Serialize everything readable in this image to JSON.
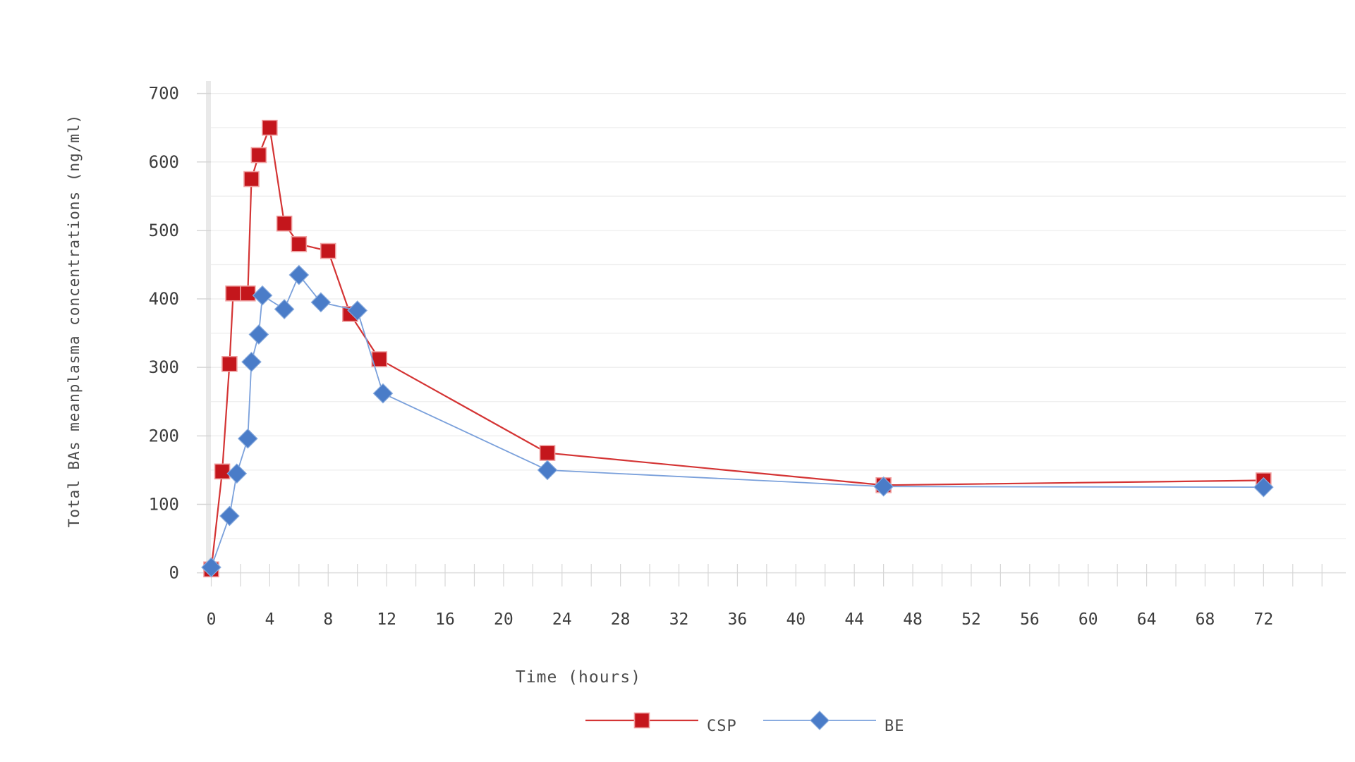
{
  "chart_data": {
    "type": "line",
    "title": "",
    "xlabel": "Time (hours)",
    "ylabel": "Total BAs meanplasma concentrations (ng/ml)",
    "xlim": [
      0,
      77.5
    ],
    "ylim": [
      0,
      730
    ],
    "x_tick_labels": [
      0,
      4,
      8,
      12,
      16,
      20,
      24,
      28,
      32,
      36,
      40,
      44,
      48,
      52,
      56,
      60,
      64,
      68,
      72
    ],
    "x_minor_tick_step_hours": 2,
    "y_tick_labels": [
      0,
      100,
      200,
      300,
      400,
      500,
      600,
      700
    ],
    "y_gridline_step": 50,
    "grid": "horizontal light gridlines every 50, minor x ticks every 2h",
    "legend_position": "bottom-center",
    "colors": {
      "csp_marker": "#c4161c",
      "csp_marker_edge": "#ef9f9f",
      "csp_line": "#d43434",
      "be_marker": "#4a7cc8",
      "be_marker_edge": "#87aadd",
      "be_line": "#7aa0db",
      "gridline": "#ededed",
      "axis_baseline": "#dcdcdc",
      "tick": "#d6d6d6",
      "y_axis_bar": "#e9e9e9",
      "tick_text": "#3d3d3d"
    },
    "series": [
      {
        "name": "CSP",
        "marker": "square",
        "points": [
          {
            "t": 0,
            "v": 5
          },
          {
            "t": 0.75,
            "v": 148
          },
          {
            "t": 1.25,
            "v": 305
          },
          {
            "t": 1.5,
            "v": 408
          },
          {
            "t": 2.5,
            "v": 408
          },
          {
            "t": 2.75,
            "v": 575
          },
          {
            "t": 3.25,
            "v": 610
          },
          {
            "t": 4,
            "v": 650
          },
          {
            "t": 5,
            "v": 510
          },
          {
            "t": 6,
            "v": 480
          },
          {
            "t": 8,
            "v": 470
          },
          {
            "t": 9.5,
            "v": 378
          },
          {
            "t": 11.5,
            "v": 312
          },
          {
            "t": 23,
            "v": 175
          },
          {
            "t": 46,
            "v": 128
          },
          {
            "t": 72,
            "v": 135
          }
        ]
      },
      {
        "name": "BE",
        "marker": "diamond",
        "points": [
          {
            "t": 0,
            "v": 8
          },
          {
            "t": 1.25,
            "v": 83
          },
          {
            "t": 1.75,
            "v": 145
          },
          {
            "t": 2.5,
            "v": 196
          },
          {
            "t": 2.75,
            "v": 308
          },
          {
            "t": 3.25,
            "v": 348
          },
          {
            "t": 3.5,
            "v": 405
          },
          {
            "t": 5,
            "v": 385
          },
          {
            "t": 6,
            "v": 435
          },
          {
            "t": 7.5,
            "v": 395
          },
          {
            "t": 10,
            "v": 383
          },
          {
            "t": 11.75,
            "v": 262
          },
          {
            "t": 23,
            "v": 150
          },
          {
            "t": 46,
            "v": 126
          },
          {
            "t": 72,
            "v": 125
          }
        ]
      }
    ]
  }
}
